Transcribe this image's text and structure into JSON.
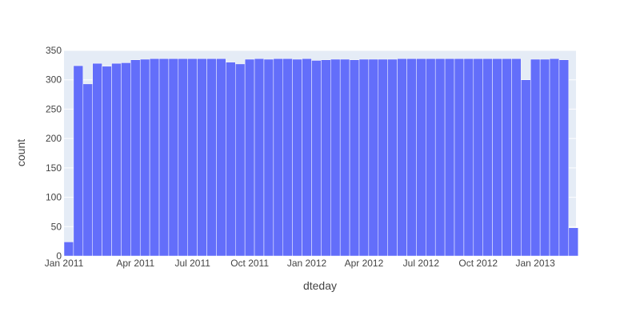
{
  "chart_data": {
    "type": "bar",
    "title": "",
    "xlabel": "dteday",
    "ylabel": "count",
    "ylim": [
      0,
      350
    ],
    "grid": true,
    "bar_color": "#636efa",
    "plot_bg": "#e5ecf6",
    "y_ticks": [
      "0",
      "50",
      "100",
      "150",
      "200",
      "250",
      "300",
      "350"
    ],
    "x_ticks": [
      {
        "label": "Jan 2011",
        "position": 0
      },
      {
        "label": "Apr 2011",
        "position": 7.5
      },
      {
        "label": "Jul 2011",
        "position": 13.5
      },
      {
        "label": "Oct 2011",
        "position": 19.5
      },
      {
        "label": "Jan 2012",
        "position": 25.5
      },
      {
        "label": "Apr 2012",
        "position": 31.5
      },
      {
        "label": "Jul 2012",
        "position": 37.5
      },
      {
        "label": "Oct 2012",
        "position": 43.5
      },
      {
        "label": "Jan 2013",
        "position": 49.5
      }
    ],
    "values": [
      24,
      324,
      293,
      328,
      323,
      328,
      329,
      334,
      335,
      336,
      336,
      336,
      336,
      336,
      336,
      336,
      336,
      330,
      327,
      335,
      336,
      335,
      336,
      336,
      335,
      336,
      333,
      334,
      335,
      335,
      334,
      335,
      335,
      335,
      335,
      336,
      336,
      336,
      336,
      336,
      336,
      336,
      336,
      336,
      336,
      336,
      336,
      336,
      300,
      335,
      335,
      336,
      334,
      48
    ]
  }
}
